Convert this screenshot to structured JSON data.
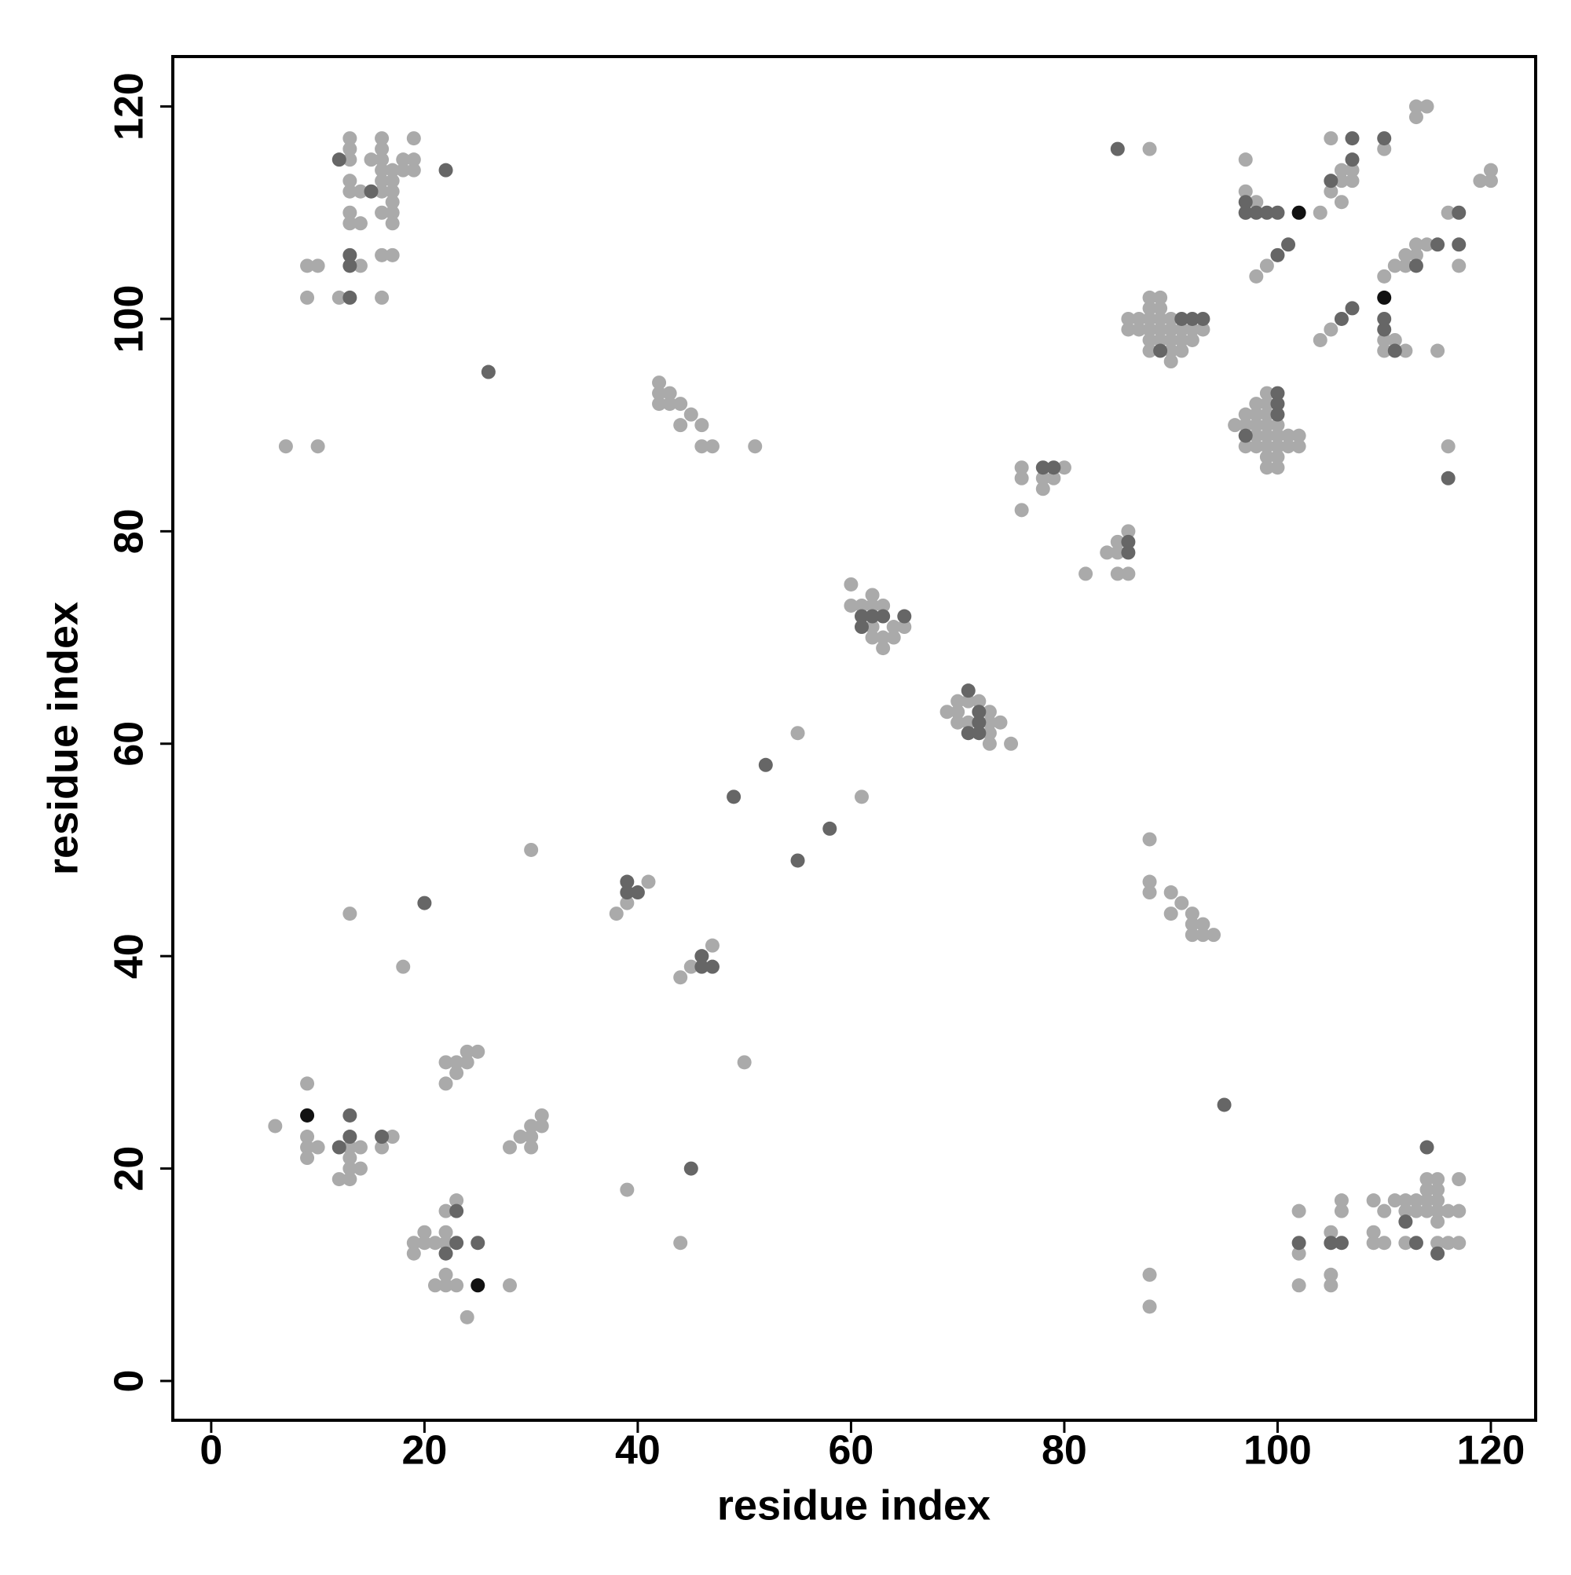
{
  "chart_data": {
    "type": "scatter",
    "x_label": "residue index",
    "y_label": "residue index",
    "xlim": [
      -3.6,
      124.2
    ],
    "ylim": [
      -3.7,
      124.7
    ],
    "xticks": [
      0,
      20,
      40,
      60,
      80,
      100,
      120
    ],
    "yticks": [
      0,
      20,
      40,
      60,
      80,
      100,
      120
    ],
    "grid": false,
    "series": [
      {
        "color": "#aaaaaa",
        "x": [
          13,
          13,
          13,
          13,
          13,
          14,
          13,
          13,
          14,
          15,
          16,
          16,
          16,
          16,
          17,
          17,
          16,
          16,
          17,
          18,
          18,
          19,
          19,
          19,
          17,
          16,
          17,
          17,
          16,
          17,
          14,
          9,
          10,
          9,
          12,
          16,
          7,
          10,
          42,
          42,
          43,
          42,
          43,
          44,
          45,
          44,
          46,
          46,
          47,
          51,
          13,
          18,
          30,
          50,
          55,
          61,
          39,
          44,
          6,
          9,
          9,
          9,
          9,
          10,
          13,
          14,
          13,
          12,
          13,
          13,
          14,
          16,
          17,
          22,
          23,
          24,
          24,
          25,
          23,
          22,
          28,
          29,
          30,
          30,
          30,
          31,
          31,
          19,
          19,
          20,
          20,
          21,
          22,
          22,
          22,
          23,
          22,
          21,
          22,
          23,
          24,
          28,
          38,
          39,
          41,
          44,
          45,
          47,
          60,
          60,
          61,
          62,
          62,
          63,
          62,
          62,
          63,
          63,
          64,
          64,
          65,
          69,
          70,
          70,
          70,
          71,
          71,
          72,
          73,
          73,
          73,
          73,
          74,
          75,
          76,
          76,
          76,
          78,
          78,
          79,
          80,
          82,
          84,
          85,
          85,
          86,
          85,
          86,
          88,
          88,
          88,
          90,
          90,
          91,
          92,
          92,
          92,
          93,
          93,
          94,
          86,
          86,
          87,
          87,
          88,
          88,
          88,
          88,
          88,
          88,
          89,
          89,
          89,
          89,
          89,
          90,
          90,
          90,
          90,
          90,
          91,
          91,
          91,
          92,
          92,
          93,
          96,
          97,
          97,
          97,
          98,
          98,
          98,
          98,
          98,
          99,
          99,
          99,
          99,
          99,
          99,
          99,
          99,
          100,
          100,
          100,
          100,
          100,
          101,
          101,
          102,
          102,
          88,
          88,
          88,
          97,
          97,
          98,
          97,
          98,
          99,
          104,
          104,
          105,
          105,
          105,
          106,
          106,
          106,
          107,
          107,
          110,
          110,
          111,
          112,
          112,
          113,
          113,
          114,
          112,
          110,
          110,
          111,
          115,
          113,
          114,
          113,
          116,
          117,
          116,
          119,
          120,
          120,
          102,
          102,
          102,
          105,
          105,
          105,
          106,
          106,
          109,
          109,
          109,
          110,
          110,
          111,
          112,
          112,
          112,
          113,
          113,
          114,
          114,
          114,
          114,
          115,
          115,
          115,
          115,
          115,
          115,
          116,
          116,
          117,
          117,
          117
        ],
        "y": [
          117,
          116,
          115,
          113,
          112,
          112,
          110,
          109,
          109,
          115,
          117,
          116,
          115,
          114,
          114,
          113,
          113,
          112,
          112,
          115,
          114,
          117,
          115,
          114,
          111,
          110,
          110,
          109,
          106,
          106,
          105,
          105,
          105,
          102,
          102,
          102,
          88,
          88,
          94,
          93,
          93,
          92,
          92,
          92,
          91,
          90,
          90,
          88,
          88,
          88,
          44,
          39,
          50,
          30,
          61,
          55,
          18,
          13,
          24,
          28,
          23,
          22,
          21,
          22,
          22,
          22,
          21,
          19,
          19,
          20,
          20,
          22,
          23,
          30,
          30,
          30,
          31,
          31,
          29,
          28,
          22,
          23,
          23,
          22,
          24,
          24,
          25,
          13,
          12,
          14,
          13,
          13,
          14,
          13,
          16,
          17,
          10,
          9,
          9,
          9,
          6,
          9,
          44,
          45,
          47,
          38,
          39,
          41,
          75,
          73,
          73,
          74,
          73,
          73,
          71,
          70,
          70,
          69,
          70,
          71,
          71,
          63,
          64,
          63,
          62,
          64,
          62,
          64,
          63,
          62,
          61,
          60,
          62,
          60,
          86,
          85,
          82,
          85,
          84,
          85,
          86,
          76,
          78,
          78,
          79,
          80,
          76,
          76,
          51,
          47,
          46,
          46,
          44,
          45,
          44,
          43,
          42,
          43,
          42,
          42,
          100,
          99,
          100,
          99,
          102,
          101,
          100,
          99,
          98,
          97,
          102,
          101,
          100,
          99,
          98,
          100,
          99,
          98,
          97,
          96,
          99,
          98,
          97,
          98,
          99,
          99,
          90,
          91,
          90,
          88,
          92,
          91,
          90,
          89,
          88,
          93,
          92,
          91,
          90,
          89,
          88,
          87,
          86,
          90,
          89,
          88,
          87,
          86,
          89,
          88,
          89,
          88,
          116,
          10,
          7,
          115,
          112,
          111,
          110,
          104,
          105,
          110,
          98,
          99,
          117,
          112,
          114,
          113,
          111,
          114,
          113,
          116,
          104,
          105,
          106,
          105,
          107,
          106,
          107,
          97,
          97,
          98,
          98,
          97,
          120,
          120,
          119,
          110,
          105,
          88,
          113,
          114,
          113,
          16,
          12,
          9,
          14,
          10,
          9,
          17,
          16,
          17,
          14,
          13,
          16,
          13,
          17,
          17,
          16,
          13,
          17,
          16,
          19,
          18,
          17,
          16,
          19,
          18,
          17,
          16,
          15,
          13,
          16,
          13,
          19,
          16,
          13
        ]
      },
      {
        "color": "#666666",
        "x": [
          12,
          15,
          22,
          13,
          13,
          13,
          26,
          20,
          12,
          13,
          13,
          16,
          22,
          23,
          23,
          25,
          39,
          39,
          40,
          46,
          46,
          47,
          45,
          49,
          52,
          55,
          58,
          61,
          62,
          63,
          65,
          61,
          71,
          72,
          72,
          72,
          71,
          78,
          79,
          86,
          86,
          85,
          89,
          91,
          92,
          93,
          97,
          97,
          98,
          99,
          100,
          100,
          101,
          97,
          100,
          100,
          100,
          105,
          106,
          107,
          107,
          107,
          110,
          110,
          110,
          111,
          113,
          115,
          117,
          117,
          116,
          95,
          102,
          106,
          112,
          114,
          115,
          113,
          105
        ],
        "y": [
          115,
          112,
          114,
          106,
          105,
          102,
          95,
          45,
          22,
          25,
          23,
          23,
          12,
          13,
          16,
          13,
          47,
          46,
          46,
          40,
          39,
          39,
          20,
          55,
          58,
          49,
          52,
          72,
          72,
          72,
          72,
          71,
          65,
          63,
          62,
          61,
          61,
          86,
          86,
          79,
          78,
          116,
          97,
          100,
          100,
          100,
          110,
          111,
          110,
          110,
          110,
          106,
          107,
          89,
          93,
          92,
          91,
          113,
          100,
          101,
          115,
          117,
          117,
          100,
          99,
          97,
          105,
          107,
          107,
          110,
          85,
          26,
          13,
          13,
          15,
          22,
          12,
          13,
          13
        ]
      },
      {
        "color": "#111111",
        "x": [
          9,
          25,
          102,
          110
        ],
        "y": [
          25,
          9,
          110,
          102
        ]
      }
    ]
  }
}
